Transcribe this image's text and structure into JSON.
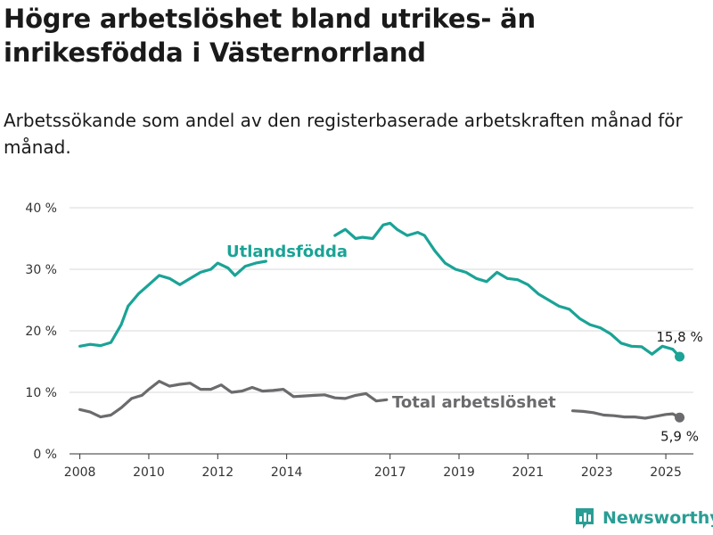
{
  "title": "Högre arbetslöshet bland utrikes- än inrikesfödda i Västernorrland",
  "subtitle": "Arbetssökande som andel av den registerbaserade arbetskraften månad för månad.",
  "brand": {
    "name": "Newsworthy",
    "color": "#2a9d94"
  },
  "chart_data": {
    "type": "line",
    "title": "Högre arbetslöshet bland utrikes- än inrikesfödda i Västernorrland",
    "subtitle": "Arbetssökande som andel av den registerbaserade arbetskraften månad för månad.",
    "xlabel": "",
    "ylabel": "",
    "y_unit": "%",
    "ylim": [
      0,
      40
    ],
    "xlim": [
      2007.7,
      2025.8
    ],
    "y_ticks": [
      0,
      10,
      20,
      30,
      40
    ],
    "y_tick_labels": [
      "0 %",
      "10 %",
      "20 %",
      "30 %",
      "40 %"
    ],
    "x_ticks": [
      2008,
      2010,
      2012,
      2014,
      2017,
      2019,
      2021,
      2023,
      2025
    ],
    "x_tick_labels": [
      "2008",
      "2010",
      "2012",
      "2014",
      "2017",
      "2019",
      "2021",
      "2023",
      "2025"
    ],
    "grid": true,
    "legend": "inline labels",
    "series": [
      {
        "name": "Utlandsfödda",
        "color": "#1aa396",
        "end_label": "15,8 %",
        "x": [
          2008,
          2008.3,
          2008.6,
          2008.9,
          2009.2,
          2009.4,
          2009.7,
          2010,
          2010.3,
          2010.6,
          2010.9,
          2011.2,
          2011.5,
          2011.8,
          2012,
          2012.3,
          2012.5,
          2012.8,
          2013.1,
          2013.4
        ],
        "values": [
          17.5,
          17.8,
          17.6,
          18.1,
          21,
          24,
          26,
          27.5,
          29,
          28.5,
          27.5,
          28.5,
          29.5,
          30,
          31,
          30.2,
          29,
          30.5,
          31,
          31.3
        ],
        "segments": [
          {
            "x": [
              2015.4,
              2015.7,
              2016,
              2016.2,
              2016.5,
              2016.8,
              2017,
              2017.2,
              2017.5,
              2017.8,
              2018,
              2018.3,
              2018.6,
              2018.9,
              2019.2,
              2019.5,
              2019.8,
              2020.1,
              2020.4,
              2020.7,
              2021,
              2021.3,
              2021.6,
              2021.9,
              2022.2,
              2022.5,
              2022.8,
              2023.1,
              2023.4,
              2023.7,
              2024,
              2024.3,
              2024.6,
              2024.9,
              2025.2,
              2025.4
            ],
            "values": [
              35.5,
              36.5,
              35,
              35.2,
              35,
              37.2,
              37.5,
              36.5,
              35.5,
              36,
              35.5,
              33,
              31,
              30,
              29.5,
              28.5,
              28,
              29.5,
              28.5,
              28.3,
              27.5,
              26,
              25,
              24,
              23.5,
              22,
              21,
              20.5,
              19.5,
              18,
              17.5,
              17.4,
              16.2,
              17.5,
              17,
              15.8
            ]
          }
        ]
      },
      {
        "name": "Total arbetslöshet",
        "color": "#6b6b6e",
        "end_label": "5,9 %",
        "x": [
          2008,
          2008.3,
          2008.6,
          2008.9,
          2009.2,
          2009.5,
          2009.8,
          2010,
          2010.3,
          2010.6,
          2010.9,
          2011.2,
          2011.5,
          2011.8,
          2012.1,
          2012.4,
          2012.7,
          2013,
          2013.3,
          2013.6,
          2013.9,
          2014.2,
          2014.5,
          2014.8,
          2015.1,
          2015.4,
          2015.7,
          2016,
          2016.3,
          2016.6,
          2016.9
        ],
        "values": [
          7.2,
          6.8,
          6,
          6.3,
          7.5,
          9,
          9.5,
          10.5,
          11.8,
          11,
          11.3,
          11.5,
          10.5,
          10.5,
          11.2,
          10,
          10.2,
          10.8,
          10.2,
          10.3,
          10.5,
          9.3,
          9.4,
          9.5,
          9.6,
          9.1,
          9,
          9.5,
          9.8,
          8.6,
          8.8
        ],
        "segments": [
          {
            "x": [
              2022.3,
              2022.6,
              2022.9,
              2023.2,
              2023.5,
              2023.8,
              2024.1,
              2024.4,
              2024.7,
              2025,
              2025.2,
              2025.4
            ],
            "values": [
              7,
              6.9,
              6.7,
              6.3,
              6.2,
              6,
              6,
              5.8,
              6.1,
              6.4,
              6.5,
              5.9
            ]
          }
        ]
      }
    ]
  }
}
